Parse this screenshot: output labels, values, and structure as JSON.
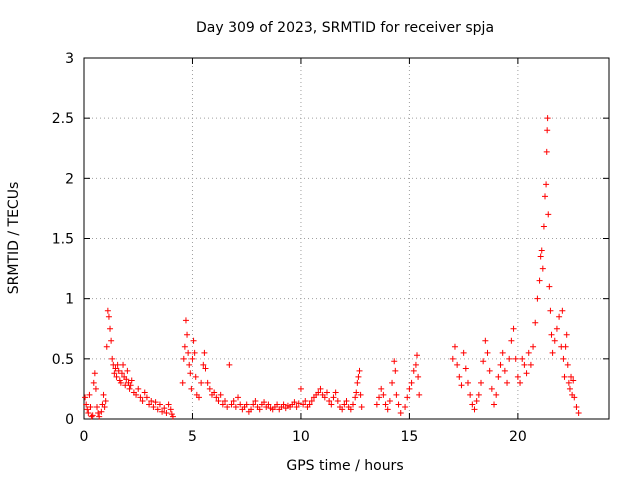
{
  "chart_data": {
    "type": "scatter",
    "title": "Day 309 of 2023, SRMTID for receiver spja",
    "xlabel": "GPS time / hours",
    "ylabel": "SRMTID / TECUs",
    "xlim": [
      0,
      24.2
    ],
    "ylim": [
      0,
      3
    ],
    "grid": true,
    "marker": "+",
    "color": "#ff0000",
    "xticks": [
      0,
      5,
      10,
      15,
      20
    ],
    "xtick_labels": [
      "0",
      "5",
      "10",
      "15",
      "20"
    ],
    "yticks": [
      0,
      0.5,
      1,
      1.5,
      2,
      2.5,
      3
    ],
    "ytick_labels": [
      "0",
      "0.5",
      "1",
      "1.5",
      "2",
      "2.5",
      "3"
    ],
    "series": [
      {
        "name": "SRMTID",
        "points": [
          [
            0.05,
            0.18
          ],
          [
            0.1,
            0.12
          ],
          [
            0.15,
            0.08
          ],
          [
            0.2,
            0.05
          ],
          [
            0.25,
            0.2
          ],
          [
            0.3,
            0.1
          ],
          [
            0.35,
            0.02
          ],
          [
            0.4,
            0.03
          ],
          [
            0.45,
            0.3
          ],
          [
            0.5,
            0.38
          ],
          [
            0.55,
            0.25
          ],
          [
            0.6,
            0.1
          ],
          [
            0.65,
            0.05
          ],
          [
            0.7,
            0.02
          ],
          [
            0.8,
            0.06
          ],
          [
            0.85,
            0.12
          ],
          [
            0.9,
            0.2
          ],
          [
            0.95,
            0.1
          ],
          [
            1.0,
            0.15
          ],
          [
            1.05,
            0.6
          ],
          [
            1.1,
            0.9
          ],
          [
            1.15,
            0.85
          ],
          [
            1.2,
            0.75
          ],
          [
            1.25,
            0.65
          ],
          [
            1.3,
            0.5
          ],
          [
            1.35,
            0.45
          ],
          [
            1.4,
            0.38
          ],
          [
            1.45,
            0.42
          ],
          [
            1.5,
            0.35
          ],
          [
            1.55,
            0.45
          ],
          [
            1.6,
            0.4
          ],
          [
            1.65,
            0.32
          ],
          [
            1.7,
            0.3
          ],
          [
            1.75,
            0.38
          ],
          [
            1.8,
            0.45
          ],
          [
            1.85,
            0.35
          ],
          [
            1.9,
            0.28
          ],
          [
            1.95,
            0.33
          ],
          [
            2.0,
            0.4
          ],
          [
            2.05,
            0.3
          ],
          [
            2.1,
            0.25
          ],
          [
            2.15,
            0.28
          ],
          [
            2.2,
            0.32
          ],
          [
            2.3,
            0.22
          ],
          [
            2.4,
            0.2
          ],
          [
            2.5,
            0.25
          ],
          [
            2.6,
            0.18
          ],
          [
            2.7,
            0.15
          ],
          [
            2.8,
            0.22
          ],
          [
            2.9,
            0.18
          ],
          [
            3.0,
            0.12
          ],
          [
            3.1,
            0.15
          ],
          [
            3.2,
            0.1
          ],
          [
            3.3,
            0.14
          ],
          [
            3.4,
            0.08
          ],
          [
            3.5,
            0.12
          ],
          [
            3.6,
            0.06
          ],
          [
            3.7,
            0.09
          ],
          [
            3.8,
            0.05
          ],
          [
            3.9,
            0.12
          ],
          [
            4.0,
            0.08
          ],
          [
            4.05,
            0.04
          ],
          [
            4.1,
            0.02
          ],
          [
            4.55,
            0.3
          ],
          [
            4.6,
            0.5
          ],
          [
            4.65,
            0.6
          ],
          [
            4.7,
            0.82
          ],
          [
            4.75,
            0.7
          ],
          [
            4.8,
            0.55
          ],
          [
            4.85,
            0.45
          ],
          [
            4.9,
            0.38
          ],
          [
            4.95,
            0.25
          ],
          [
            5.0,
            0.5
          ],
          [
            5.05,
            0.65
          ],
          [
            5.1,
            0.55
          ],
          [
            5.15,
            0.35
          ],
          [
            5.2,
            0.2
          ],
          [
            5.3,
            0.18
          ],
          [
            5.4,
            0.3
          ],
          [
            5.5,
            0.45
          ],
          [
            5.55,
            0.55
          ],
          [
            5.6,
            0.42
          ],
          [
            5.7,
            0.3
          ],
          [
            5.8,
            0.25
          ],
          [
            5.9,
            0.2
          ],
          [
            6.0,
            0.22
          ],
          [
            6.1,
            0.18
          ],
          [
            6.2,
            0.15
          ],
          [
            6.3,
            0.2
          ],
          [
            6.4,
            0.12
          ],
          [
            6.5,
            0.15
          ],
          [
            6.6,
            0.1
          ],
          [
            6.7,
            0.45
          ],
          [
            6.8,
            0.12
          ],
          [
            6.9,
            0.15
          ],
          [
            7.0,
            0.1
          ],
          [
            7.1,
            0.18
          ],
          [
            7.2,
            0.12
          ],
          [
            7.3,
            0.08
          ],
          [
            7.4,
            0.1
          ],
          [
            7.5,
            0.12
          ],
          [
            7.6,
            0.06
          ],
          [
            7.7,
            0.08
          ],
          [
            7.8,
            0.12
          ],
          [
            7.9,
            0.15
          ],
          [
            8.0,
            0.1
          ],
          [
            8.1,
            0.08
          ],
          [
            8.2,
            0.12
          ],
          [
            8.3,
            0.14
          ],
          [
            8.4,
            0.1
          ],
          [
            8.5,
            0.12
          ],
          [
            8.6,
            0.09
          ],
          [
            8.7,
            0.08
          ],
          [
            8.8,
            0.1
          ],
          [
            8.9,
            0.12
          ],
          [
            9.0,
            0.08
          ],
          [
            9.1,
            0.1
          ],
          [
            9.2,
            0.12
          ],
          [
            9.3,
            0.09
          ],
          [
            9.4,
            0.11
          ],
          [
            9.5,
            0.1
          ],
          [
            9.6,
            0.12
          ],
          [
            9.7,
            0.14
          ],
          [
            9.8,
            0.1
          ],
          [
            9.9,
            0.13
          ],
          [
            10.0,
            0.25
          ],
          [
            10.1,
            0.12
          ],
          [
            10.2,
            0.15
          ],
          [
            10.3,
            0.1
          ],
          [
            10.4,
            0.12
          ],
          [
            10.5,
            0.15
          ],
          [
            10.6,
            0.18
          ],
          [
            10.7,
            0.2
          ],
          [
            10.8,
            0.22
          ],
          [
            10.9,
            0.25
          ],
          [
            11.0,
            0.2
          ],
          [
            11.1,
            0.18
          ],
          [
            11.2,
            0.22
          ],
          [
            11.3,
            0.15
          ],
          [
            11.4,
            0.12
          ],
          [
            11.5,
            0.18
          ],
          [
            11.6,
            0.22
          ],
          [
            11.7,
            0.15
          ],
          [
            11.8,
            0.1
          ],
          [
            11.9,
            0.08
          ],
          [
            12.0,
            0.12
          ],
          [
            12.1,
            0.15
          ],
          [
            12.2,
            0.1
          ],
          [
            12.3,
            0.08
          ],
          [
            12.4,
            0.12
          ],
          [
            12.5,
            0.18
          ],
          [
            12.55,
            0.22
          ],
          [
            12.6,
            0.3
          ],
          [
            12.65,
            0.35
          ],
          [
            12.7,
            0.4
          ],
          [
            12.75,
            0.2
          ],
          [
            12.8,
            0.1
          ],
          [
            13.5,
            0.12
          ],
          [
            13.6,
            0.18
          ],
          [
            13.7,
            0.25
          ],
          [
            13.8,
            0.2
          ],
          [
            13.9,
            0.12
          ],
          [
            14.0,
            0.08
          ],
          [
            14.1,
            0.15
          ],
          [
            14.2,
            0.3
          ],
          [
            14.3,
            0.48
          ],
          [
            14.35,
            0.4
          ],
          [
            14.4,
            0.2
          ],
          [
            14.5,
            0.12
          ],
          [
            14.6,
            0.05
          ],
          [
            14.8,
            0.1
          ],
          [
            14.9,
            0.18
          ],
          [
            15.0,
            0.25
          ],
          [
            15.1,
            0.3
          ],
          [
            15.2,
            0.4
          ],
          [
            15.3,
            0.45
          ],
          [
            15.35,
            0.53
          ],
          [
            15.4,
            0.35
          ],
          [
            15.45,
            0.2
          ],
          [
            17.0,
            0.5
          ],
          [
            17.1,
            0.6
          ],
          [
            17.2,
            0.45
          ],
          [
            17.3,
            0.35
          ],
          [
            17.4,
            0.28
          ],
          [
            17.5,
            0.55
          ],
          [
            17.6,
            0.42
          ],
          [
            17.7,
            0.3
          ],
          [
            17.8,
            0.2
          ],
          [
            17.9,
            0.12
          ],
          [
            18.0,
            0.08
          ],
          [
            18.1,
            0.15
          ],
          [
            18.2,
            0.2
          ],
          [
            18.3,
            0.3
          ],
          [
            18.4,
            0.48
          ],
          [
            18.5,
            0.65
          ],
          [
            18.6,
            0.55
          ],
          [
            18.7,
            0.4
          ],
          [
            18.8,
            0.25
          ],
          [
            18.9,
            0.12
          ],
          [
            19.0,
            0.2
          ],
          [
            19.1,
            0.35
          ],
          [
            19.2,
            0.45
          ],
          [
            19.3,
            0.55
          ],
          [
            19.4,
            0.4
          ],
          [
            19.5,
            0.3
          ],
          [
            19.6,
            0.5
          ],
          [
            19.7,
            0.65
          ],
          [
            19.8,
            0.75
          ],
          [
            19.9,
            0.5
          ],
          [
            20.0,
            0.35
          ],
          [
            20.1,
            0.3
          ],
          [
            20.2,
            0.5
          ],
          [
            20.3,
            0.45
          ],
          [
            20.4,
            0.38
          ],
          [
            20.5,
            0.55
          ],
          [
            20.6,
            0.45
          ],
          [
            20.7,
            0.6
          ],
          [
            20.8,
            0.8
          ],
          [
            20.9,
            1.0
          ],
          [
            21.0,
            1.15
          ],
          [
            21.05,
            1.35
          ],
          [
            21.1,
            1.4
          ],
          [
            21.15,
            1.25
          ],
          [
            21.2,
            1.6
          ],
          [
            21.25,
            1.85
          ],
          [
            21.3,
            1.95
          ],
          [
            21.33,
            2.22
          ],
          [
            21.35,
            2.4
          ],
          [
            21.37,
            2.5
          ],
          [
            21.4,
            1.7
          ],
          [
            21.45,
            1.1
          ],
          [
            21.5,
            0.9
          ],
          [
            21.55,
            0.7
          ],
          [
            21.6,
            0.55
          ],
          [
            21.7,
            0.65
          ],
          [
            21.8,
            0.75
          ],
          [
            21.9,
            0.85
          ],
          [
            22.0,
            0.6
          ],
          [
            22.05,
            0.9
          ],
          [
            22.1,
            0.5
          ],
          [
            22.15,
            0.35
          ],
          [
            22.2,
            0.6
          ],
          [
            22.25,
            0.7
          ],
          [
            22.3,
            0.45
          ],
          [
            22.35,
            0.3
          ],
          [
            22.4,
            0.25
          ],
          [
            22.45,
            0.35
          ],
          [
            22.5,
            0.2
          ],
          [
            22.55,
            0.32
          ],
          [
            22.6,
            0.18
          ],
          [
            22.7,
            0.1
          ],
          [
            22.8,
            0.05
          ]
        ]
      }
    ]
  }
}
